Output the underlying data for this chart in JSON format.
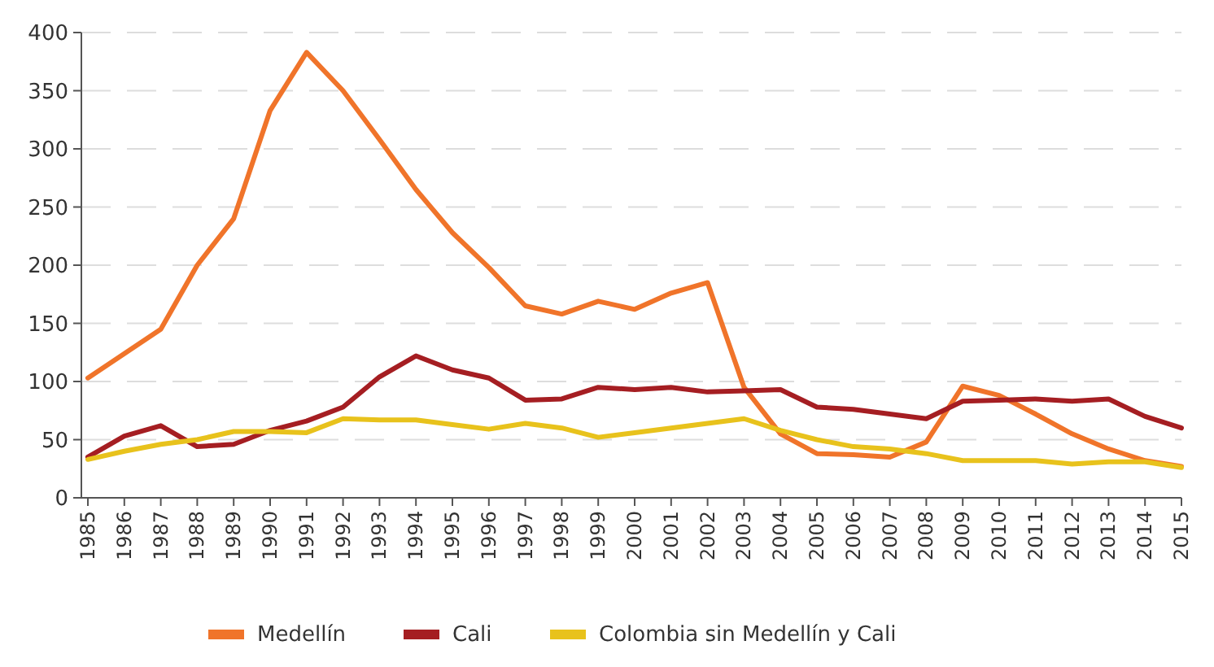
{
  "chart_data": {
    "type": "line",
    "categories": [
      "1985",
      "1986",
      "1987",
      "1988",
      "1989",
      "1990",
      "1991",
      "1992",
      "1993",
      "1994",
      "1995",
      "1996",
      "1997",
      "1998",
      "1999",
      "2000",
      "2001",
      "2002",
      "2003",
      "2004",
      "2005",
      "2006",
      "2007",
      "2008",
      "2009",
      "2010",
      "2011",
      "2012",
      "2013",
      "2014",
      "2015"
    ],
    "series": [
      {
        "name": "Medellín",
        "color": "#f0742a",
        "values": [
          103,
          124,
          145,
          200,
          240,
          333,
          383,
          350,
          308,
          265,
          228,
          198,
          165,
          158,
          169,
          162,
          176,
          185,
          95,
          55,
          38,
          37,
          35,
          48,
          96,
          88,
          72,
          55,
          42,
          32,
          27
        ]
      },
      {
        "name": "Cali",
        "color": "#a51e22",
        "values": [
          35,
          53,
          62,
          44,
          46,
          58,
          66,
          78,
          104,
          122,
          110,
          103,
          84,
          85,
          95,
          93,
          95,
          91,
          92,
          93,
          78,
          76,
          72,
          68,
          83,
          84,
          85,
          83,
          85,
          70,
          60
        ]
      },
      {
        "name": "Colombia sin Medellín y Cali",
        "color": "#e8c21c",
        "values": [
          33,
          40,
          46,
          50,
          57,
          57,
          56,
          68,
          67,
          67,
          63,
          59,
          64,
          60,
          52,
          56,
          60,
          64,
          68,
          58,
          50,
          44,
          42,
          38,
          32,
          32,
          32,
          29,
          31,
          31,
          26
        ]
      }
    ],
    "ylim": [
      0,
      400
    ],
    "yticks": [
      0,
      50,
      100,
      150,
      200,
      250,
      300,
      350,
      400
    ],
    "grid": "y",
    "legend": "bottom",
    "marker": "none",
    "line_style": "solid"
  }
}
